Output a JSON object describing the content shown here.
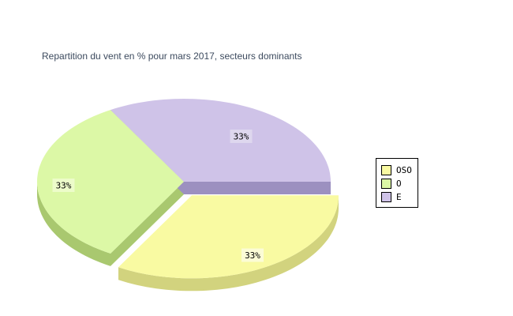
{
  "page": {
    "background": "#ffffff"
  },
  "chart_data": {
    "type": "pie",
    "projection": "3d-exploded",
    "title": "Repartition du vent en % pour mars 2017, secteurs dominants",
    "title_color": "#3c4a5e",
    "unit": "%",
    "slices": [
      {
        "label": "OSO",
        "value": 33,
        "display": "33%",
        "start_deg": 240,
        "end_deg": 360,
        "exploded": true,
        "color_top": "#f9faa2",
        "color_side": "#d2d37e",
        "label_bg": "#fcfcd6"
      },
      {
        "label": "O",
        "value": 33,
        "display": "33%",
        "start_deg": 120,
        "end_deg": 240,
        "exploded": false,
        "color_top": "#dcf8a6",
        "color_side": "#a9c86f",
        "label_bg": "#edfcca"
      },
      {
        "label": "E",
        "value": 33,
        "display": "33%",
        "start_deg": 0,
        "end_deg": 120,
        "exploded": false,
        "color_top": "#cfc3e8",
        "color_side": "#9c90c0",
        "label_bg": "#ded7ee"
      }
    ],
    "legend": {
      "position": "right",
      "entries": [
        "OSO",
        "O",
        "E"
      ],
      "border_color": "#000000",
      "background": "#ffffff",
      "text_color": "#000000"
    },
    "labels_on_slices": [
      "33%",
      "33%",
      "33%"
    ],
    "grid": "off"
  }
}
